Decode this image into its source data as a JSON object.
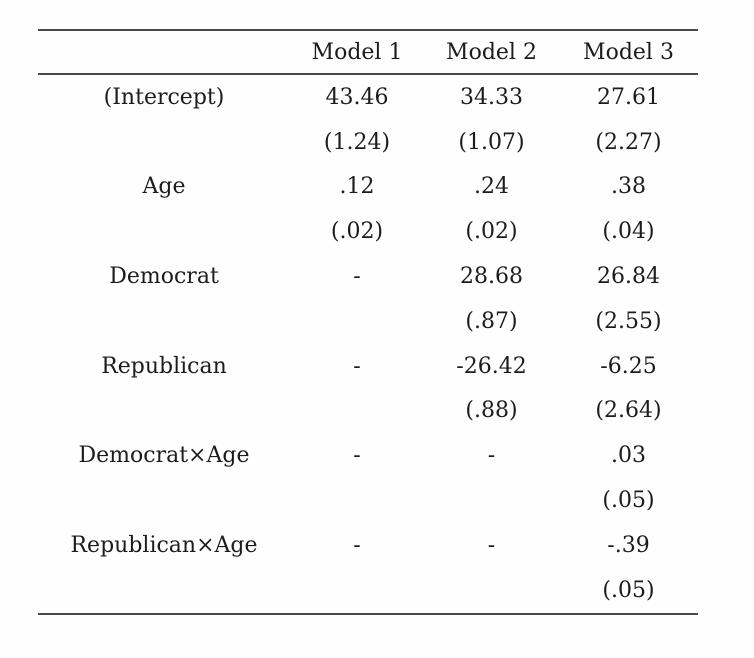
{
  "colors": {
    "text": "#1c1c1c",
    "rule": "#4a4a4a",
    "background": "#fefefe"
  },
  "table": {
    "corner_header": "",
    "column_headers": [
      "Model 1",
      "Model 2",
      "Model 3"
    ],
    "rows": [
      {
        "label": "(Intercept)",
        "estimates": [
          "43.46",
          "34.33",
          "27.61"
        ],
        "std_errors": [
          "(1.24)",
          "(1.07)",
          "(2.27)"
        ]
      },
      {
        "label": "Age",
        "estimates": [
          ".12",
          ".24",
          ".38"
        ],
        "std_errors": [
          "(.02)",
          "(.02)",
          "(.04)"
        ]
      },
      {
        "label": "Democrat",
        "estimates": [
          "-",
          "28.68",
          "26.84"
        ],
        "std_errors": [
          "",
          "(.87)",
          "(2.55)"
        ]
      },
      {
        "label": "Republican",
        "estimates": [
          "-",
          "-26.42",
          "-6.25"
        ],
        "std_errors": [
          "",
          "(.88)",
          "(2.64)"
        ]
      },
      {
        "label": "Democrat×Age",
        "estimates": [
          "-",
          "-",
          ".03"
        ],
        "std_errors": [
          "",
          "",
          "(.05)"
        ]
      },
      {
        "label": "Republican×Age",
        "estimates": [
          "-",
          "-",
          "-.39"
        ],
        "std_errors": [
          "",
          "",
          "(.05)"
        ]
      }
    ]
  }
}
